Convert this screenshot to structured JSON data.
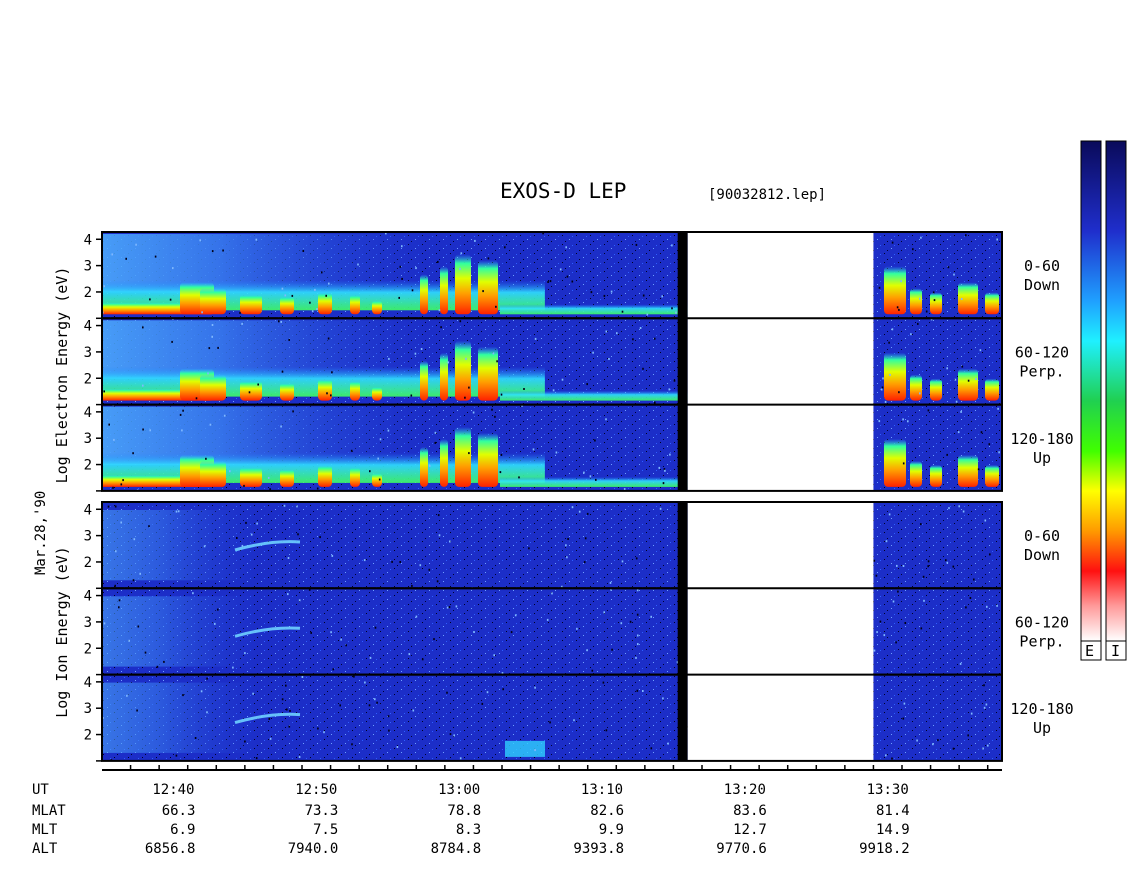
{
  "title": "EXOS-D LEP",
  "file_id": "[90032812.lep]",
  "date_label": "Mar.28,'90",
  "colorbar_labels": [
    "E",
    "I"
  ],
  "chart_data": {
    "type": "heatmap",
    "x_axis": {
      "label": "UT",
      "ticks": [
        "12:40",
        "12:50",
        "13:00",
        "13:10",
        "13:20",
        "13:30"
      ],
      "xlim": [
        "12:35",
        "13:38"
      ]
    },
    "y_axis": {
      "ticks": [
        1,
        2,
        3,
        4
      ],
      "ylim": [
        1,
        4.2
      ]
    },
    "data_gap": [
      "13:16",
      "13:29"
    ],
    "groups": [
      {
        "y_label": "Log Electron Energy (eV)",
        "panels": [
          {
            "label": [
              "0-60",
              "Down"
            ]
          },
          {
            "label": [
              "60-120",
              "Perp."
            ]
          },
          {
            "label": [
              "120-180",
              "Up"
            ]
          }
        ]
      },
      {
        "y_label": "Log Ion Energy (eV)",
        "panels": [
          {
            "label": [
              "0-60",
              "Down"
            ]
          },
          {
            "label": [
              "60-120",
              "Perp."
            ]
          },
          {
            "label": [
              "120-180",
              "Up"
            ]
          }
        ]
      }
    ],
    "orbit_table": [
      {
        "name": "MLAT",
        "values": [
          "66.3",
          "73.3",
          "78.8",
          "82.6",
          "83.6",
          "81.4"
        ]
      },
      {
        "name": "MLT",
        "values": [
          "6.9",
          "7.5",
          "8.3",
          "9.9",
          "12.7",
          "14.9"
        ]
      },
      {
        "name": "ALT",
        "values": [
          "6856.8",
          "7940.0",
          "8784.8",
          "9393.8",
          "9770.6",
          "9918.2"
        ]
      }
    ],
    "colors": {
      "background": "#1c2ec8",
      "gap": "#ffffff",
      "gap_edge": "#000000"
    }
  }
}
